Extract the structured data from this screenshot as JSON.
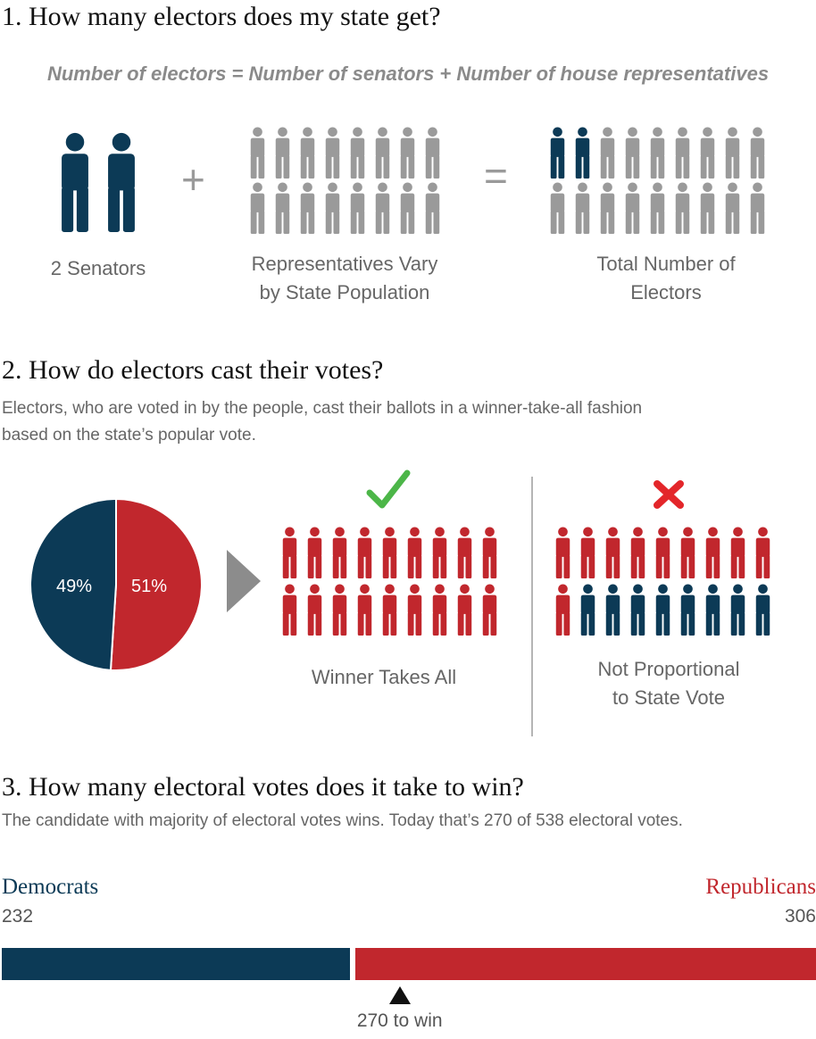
{
  "section1": {
    "title": "1. How many electors does my state get?",
    "formula": "Number of electors = Number of senators + Number of house representatives",
    "plus": "+",
    "equals": "=",
    "senators_caption": "2 Senators",
    "representatives_caption_line1": "Representatives Vary",
    "representatives_caption_line2": "by State Population",
    "total_caption_line1": "Total Number of",
    "total_caption_line2": "Electors"
  },
  "section2": {
    "title": "2. How do electors cast their votes?",
    "description_line1": "Electors, who are voted in by the people, cast their ballots in a winner-take-all fashion",
    "description_line2": "based on the state’s popular vote.",
    "pie": {
      "dem_label": "49%",
      "rep_label": "51%",
      "dem_value": 49,
      "rep_value": 51
    },
    "winner_caption": "Winner Takes All",
    "not_prop_caption_line1": "Not Proportional",
    "not_prop_caption_line2": "to State Vote",
    "check_icon": "check-icon",
    "cross_icon": "cross-icon"
  },
  "section3": {
    "title": "3. How many electoral votes does it take to win?",
    "description": "The candidate with majority of electoral votes wins. Today that’s 270 of 538 electoral votes.",
    "dem_label": "Democrats",
    "rep_label": "Republicans",
    "dem_votes": "232",
    "rep_votes": "306",
    "dem_value": 232,
    "rep_value": 306,
    "total_votes": 538,
    "win_threshold": 270,
    "win_label": "270 to win"
  },
  "colors": {
    "dem": "#0c3a56",
    "rep": "#c1272d",
    "gray": "#9a9a9a",
    "check": "#4cb648",
    "cross": "#e3262a"
  }
}
